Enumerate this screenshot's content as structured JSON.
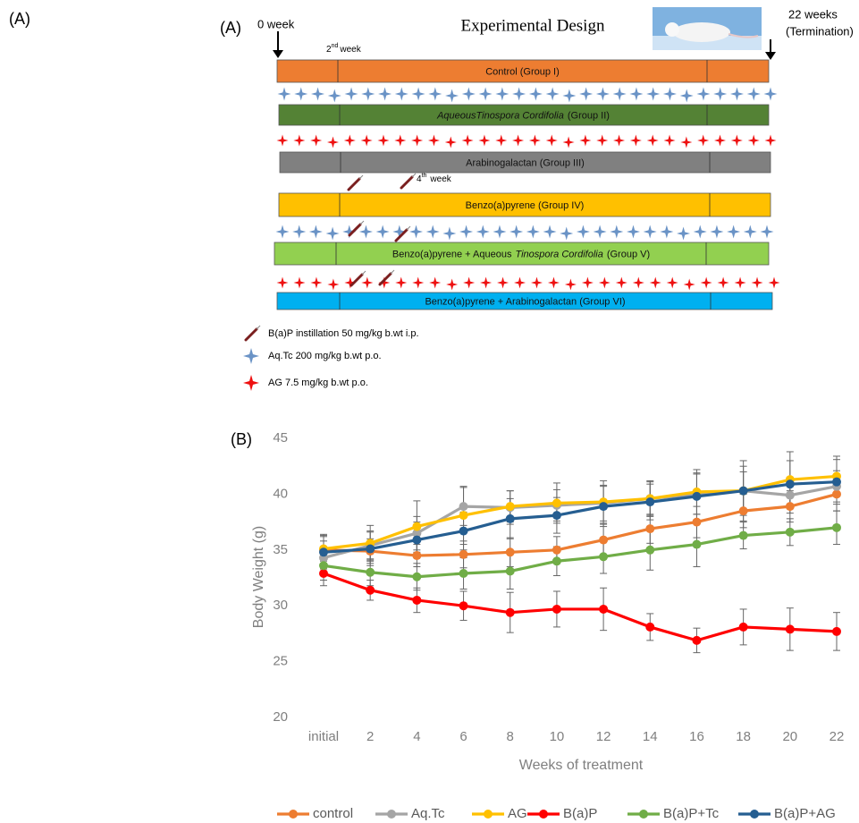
{
  "figure": {
    "panel_label_outer": "(A)",
    "panel_label": "(A)",
    "title": "Experimental Design",
    "start_label": "0 week",
    "second_week": {
      "text": "2",
      "sup": "nd",
      "rest": "week"
    },
    "end_label": [
      "22 weeks",
      "(Termination)"
    ],
    "fourth_week": {
      "text": "4",
      "sup": "th",
      "rest": "week"
    },
    "groups": [
      {
        "label": [
          {
            "text": "Control  (Group I)"
          }
        ],
        "color": "#ed7d31"
      },
      {
        "label": [
          {
            "text": "AqueousTinospora Cordifolia",
            "italic": true
          },
          {
            "text": "(Group II)"
          }
        ],
        "color": "#548235"
      },
      {
        "label": [
          {
            "text": "Arabinogalactan  (Group III)"
          }
        ],
        "color": "#808080"
      },
      {
        "label": [
          {
            "text": "Benzo(a)pyrene (Group  IV)"
          }
        ],
        "color": "#ffc000"
      },
      {
        "label": [
          {
            "text": "Benzo(a)pyrene + Aqueous"
          },
          {
            "text": "Tinospora Cordifolia",
            "italic": true
          },
          {
            "text": "(Group V)"
          }
        ],
        "color": "#92d050"
      },
      {
        "label": [
          {
            "text": "Benzo(a)pyrene + Arabinogalactan (Group VI)"
          }
        ],
        "color": "#00b0f0"
      }
    ],
    "legend": [
      {
        "symbol": "syringe",
        "text": "B(a)P instillation 50 mg/kg b.wt i.p."
      },
      {
        "symbol": "blue-star",
        "text": "Aq.Tc 200 mg/kg b.wt p.o."
      },
      {
        "symbol": "red-star",
        "text": "AG 7.5 mg/kg b.wt p.o."
      }
    ]
  },
  "panel_b_label": "(B)",
  "chart_data": {
    "type": "line",
    "xlabel": "Weeks of treatment",
    "ylabel": "Body Weight (g)",
    "categories": [
      "initial",
      "2",
      "4",
      "6",
      "8",
      "10",
      "12",
      "14",
      "16",
      "18",
      "20",
      "22"
    ],
    "ylim": [
      20,
      45
    ],
    "yticks": [
      20,
      25,
      30,
      35,
      40,
      45
    ],
    "grid": false,
    "legend": "bottom",
    "series": [
      {
        "name": "control",
        "color": "#ed7d31",
        "values": [
          35.0,
          34.9,
          34.5,
          34.6,
          34.8,
          35.0,
          35.9,
          36.9,
          37.5,
          38.5,
          38.9,
          40.0
        ],
        "errors": [
          1.2,
          1.1,
          1.0,
          1.2,
          1.3,
          1.2,
          1.4,
          1.3,
          1.4,
          1.5,
          1.4,
          1.5
        ]
      },
      {
        "name": "Aq.Tc",
        "color": "#a5a5a5",
        "values": [
          34.3,
          35.4,
          36.5,
          38.9,
          38.8,
          39.0,
          39.2,
          39.6,
          40.0,
          40.3,
          39.9,
          40.7
        ],
        "errors": [
          1.5,
          1.3,
          1.5,
          1.7,
          1.5,
          1.4,
          1.6,
          1.5,
          1.8,
          1.7,
          1.6,
          1.4
        ]
      },
      {
        "name": "AG",
        "color": "#ffc000",
        "values": [
          35.1,
          35.6,
          37.1,
          38.1,
          38.9,
          39.2,
          39.3,
          39.6,
          40.2,
          40.3,
          41.3,
          41.6
        ],
        "errors": [
          1.3,
          1.6,
          2.3,
          2.6,
          1.4,
          1.8,
          1.9,
          1.6,
          2.0,
          2.7,
          2.5,
          1.8
        ]
      },
      {
        "name": "B(a)P",
        "color": "#ff0000",
        "values": [
          32.9,
          31.4,
          30.5,
          30.0,
          29.4,
          29.7,
          29.7,
          28.1,
          26.9,
          28.1,
          27.9,
          27.7
        ],
        "errors": [
          1.1,
          0.9,
          1.1,
          1.3,
          1.8,
          1.6,
          1.9,
          1.2,
          1.1,
          1.6,
          1.9,
          1.7
        ]
      },
      {
        "name": "B(a)P+Tc",
        "color": "#70ad47",
        "values": [
          33.6,
          33.0,
          32.6,
          32.9,
          33.1,
          34.0,
          34.4,
          35.0,
          35.5,
          36.3,
          36.6,
          37.0
        ],
        "errors": [
          1.3,
          1.2,
          1.2,
          1.4,
          1.6,
          1.3,
          1.5,
          1.8,
          2.0,
          1.2,
          1.2,
          1.5
        ]
      },
      {
        "name": "B(a)P+AG",
        "color": "#255e91",
        "values": [
          34.8,
          35.1,
          35.9,
          36.7,
          37.8,
          38.1,
          38.9,
          39.3,
          39.8,
          40.3,
          40.9,
          41.1
        ],
        "errors": [
          1.5,
          1.5,
          1.6,
          1.7,
          1.8,
          1.6,
          1.8,
          1.6,
          2.1,
          2.2,
          2.1,
          2.0
        ]
      }
    ]
  }
}
